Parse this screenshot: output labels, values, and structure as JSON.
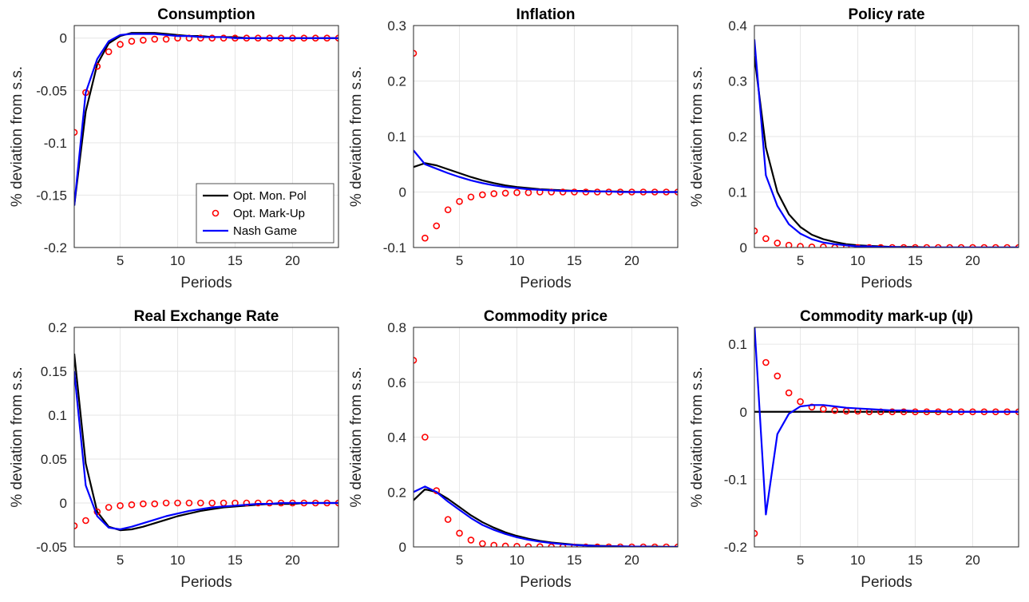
{
  "chart_data": [
    {
      "type": "line",
      "title": "Consumption",
      "xlabel": "Periods",
      "ylabel": "% deviation from s.s.",
      "x": [
        1,
        2,
        3,
        4,
        5,
        6,
        7,
        8,
        9,
        10,
        11,
        12,
        13,
        14,
        15,
        16,
        17,
        18,
        19,
        20,
        21,
        22,
        23,
        24
      ],
      "xlim": [
        1,
        24
      ],
      "xticks": [
        5,
        10,
        15,
        20
      ],
      "ylim": [
        -0.2,
        0.012
      ],
      "yticks": [
        -0.2,
        -0.15,
        -0.1,
        -0.05,
        0
      ],
      "grid": true,
      "legend": "lower right",
      "series": [
        {
          "name": "Opt. Mon. Pol",
          "color": "#000000",
          "values": [
            -0.16,
            -0.07,
            -0.025,
            -0.005,
            0.002,
            0.005,
            0.005,
            0.005,
            0.004,
            0.003,
            0.002,
            0.002,
            0.001,
            0.001,
            0.001,
            0,
            0,
            0,
            0,
            0,
            0,
            0,
            0,
            0
          ]
        },
        {
          "name": "Opt. Mark-Up",
          "color": "#ff0000",
          "marker": "circle",
          "values": [
            -0.09,
            -0.052,
            -0.027,
            -0.013,
            -0.006,
            -0.003,
            -0.002,
            -0.001,
            -0.001,
            0,
            0,
            0,
            0,
            0,
            0,
            0,
            0,
            0,
            0,
            0,
            0,
            0,
            0,
            0
          ]
        },
        {
          "name": "Nash Game",
          "color": "#0000ff",
          "values": [
            -0.16,
            -0.052,
            -0.02,
            -0.003,
            0.003,
            0.004,
            0.004,
            0.004,
            0.003,
            0.002,
            0.002,
            0.001,
            0.001,
            0.001,
            0,
            0,
            0,
            0,
            0,
            0,
            0,
            0,
            0,
            0
          ]
        }
      ]
    },
    {
      "type": "line",
      "title": "Inflation",
      "xlabel": "Periods",
      "ylabel": "% deviation from s.s.",
      "x": [
        1,
        2,
        3,
        4,
        5,
        6,
        7,
        8,
        9,
        10,
        11,
        12,
        13,
        14,
        15,
        16,
        17,
        18,
        19,
        20,
        21,
        22,
        23,
        24
      ],
      "xlim": [
        1,
        24
      ],
      "xticks": [
        5,
        10,
        15,
        20
      ],
      "ylim": [
        -0.1,
        0.3
      ],
      "yticks": [
        -0.1,
        0,
        0.1,
        0.2,
        0.3
      ],
      "grid": true,
      "series": [
        {
          "color": "#000000",
          "values": [
            0.045,
            0.052,
            0.048,
            0.041,
            0.034,
            0.027,
            0.021,
            0.016,
            0.012,
            0.009,
            0.007,
            0.005,
            0.004,
            0.003,
            0.002,
            0.002,
            0.001,
            0.001,
            0.001,
            0,
            0,
            0,
            0,
            0
          ]
        },
        {
          "color": "#ff0000",
          "marker": "circle",
          "values": [
            0.25,
            -0.083,
            -0.061,
            -0.032,
            -0.017,
            -0.009,
            -0.005,
            -0.003,
            -0.002,
            -0.001,
            -0.001,
            0,
            0,
            0,
            0,
            0,
            0,
            0,
            0,
            0,
            0,
            0,
            0,
            0
          ]
        },
        {
          "color": "#0000ff",
          "values": [
            0.075,
            0.05,
            0.042,
            0.034,
            0.027,
            0.021,
            0.016,
            0.012,
            0.009,
            0.007,
            0.005,
            0.004,
            0.003,
            0.002,
            0.002,
            0.001,
            0.001,
            0.001,
            0,
            0,
            0,
            0,
            0,
            0
          ]
        }
      ]
    },
    {
      "type": "line",
      "title": "Policy rate",
      "xlabel": "Periods",
      "ylabel": "% deviation from s.s.",
      "x": [
        1,
        2,
        3,
        4,
        5,
        6,
        7,
        8,
        9,
        10,
        11,
        12,
        13,
        14,
        15,
        16,
        17,
        18,
        19,
        20,
        21,
        22,
        23,
        24
      ],
      "xlim": [
        1,
        24
      ],
      "xticks": [
        5,
        10,
        15,
        20
      ],
      "ylim": [
        0,
        0.4
      ],
      "yticks": [
        0,
        0.1,
        0.2,
        0.3,
        0.4
      ],
      "grid": true,
      "series": [
        {
          "color": "#000000",
          "values": [
            0.345,
            0.18,
            0.1,
            0.06,
            0.037,
            0.023,
            0.015,
            0.01,
            0.006,
            0.004,
            0.003,
            0.002,
            0.001,
            0.001,
            0.001,
            0,
            0,
            0,
            0,
            0,
            0,
            0,
            0,
            0
          ]
        },
        {
          "color": "#ff0000",
          "marker": "circle",
          "values": [
            0.03,
            0.016,
            0.008,
            0.004,
            0.002,
            0.001,
            0.001,
            0,
            0,
            0,
            0,
            0,
            0,
            0,
            0,
            0,
            0,
            0,
            0,
            0,
            0,
            0,
            0,
            0
          ]
        },
        {
          "color": "#0000ff",
          "values": [
            0.375,
            0.13,
            0.075,
            0.042,
            0.025,
            0.015,
            0.009,
            0.006,
            0.004,
            0.002,
            0.002,
            0.001,
            0.001,
            0,
            0,
            0,
            0,
            0,
            0,
            0,
            0,
            0,
            0,
            0
          ]
        }
      ]
    },
    {
      "type": "line",
      "title": "Real Exchange Rate",
      "xlabel": "Periods",
      "ylabel": "% deviation from s.s.",
      "x": [
        1,
        2,
        3,
        4,
        5,
        6,
        7,
        8,
        9,
        10,
        11,
        12,
        13,
        14,
        15,
        16,
        17,
        18,
        19,
        20,
        21,
        22,
        23,
        24
      ],
      "xlim": [
        1,
        24
      ],
      "xticks": [
        5,
        10,
        15,
        20
      ],
      "ylim": [
        -0.05,
        0.2
      ],
      "yticks": [
        -0.05,
        0,
        0.05,
        0.1,
        0.15,
        0.2
      ],
      "grid": true,
      "series": [
        {
          "color": "#000000",
          "values": [
            0.17,
            0.045,
            -0.01,
            -0.027,
            -0.031,
            -0.03,
            -0.027,
            -0.023,
            -0.019,
            -0.015,
            -0.012,
            -0.009,
            -0.007,
            -0.005,
            -0.004,
            -0.003,
            -0.002,
            -0.001,
            -0.001,
            -0.001,
            0,
            0,
            0,
            0
          ]
        },
        {
          "color": "#ff0000",
          "marker": "circle",
          "values": [
            -0.026,
            -0.02,
            -0.01,
            -0.005,
            -0.003,
            -0.002,
            -0.001,
            -0.001,
            0,
            0,
            0,
            0,
            0,
            0,
            0,
            0,
            0,
            0,
            0,
            0,
            0,
            0,
            0,
            0
          ]
        },
        {
          "color": "#0000ff",
          "values": [
            0.15,
            0.02,
            -0.015,
            -0.028,
            -0.03,
            -0.027,
            -0.023,
            -0.019,
            -0.015,
            -0.012,
            -0.009,
            -0.007,
            -0.005,
            -0.004,
            -0.003,
            -0.002,
            -0.001,
            -0.001,
            0,
            0,
            0,
            0,
            0,
            0
          ]
        }
      ]
    },
    {
      "type": "line",
      "title": "Commodity price",
      "xlabel": "Periods",
      "ylabel": "% deviation from s.s.",
      "x": [
        1,
        2,
        3,
        4,
        5,
        6,
        7,
        8,
        9,
        10,
        11,
        12,
        13,
        14,
        15,
        16,
        17,
        18,
        19,
        20,
        21,
        22,
        23,
        24
      ],
      "xlim": [
        1,
        24
      ],
      "xticks": [
        5,
        10,
        15,
        20
      ],
      "ylim": [
        0,
        0.8
      ],
      "yticks": [
        0,
        0.2,
        0.4,
        0.6,
        0.8
      ],
      "grid": true,
      "series": [
        {
          "color": "#000000",
          "values": [
            0.17,
            0.21,
            0.2,
            0.175,
            0.145,
            0.115,
            0.09,
            0.07,
            0.053,
            0.04,
            0.03,
            0.022,
            0.016,
            0.012,
            0.008,
            0.006,
            0.004,
            0.003,
            0.002,
            0.001,
            0.001,
            0.001,
            0,
            0
          ]
        },
        {
          "color": "#ff0000",
          "marker": "circle",
          "values": [
            0.68,
            0.4,
            0.205,
            0.1,
            0.05,
            0.025,
            0.012,
            0.006,
            0.003,
            0.002,
            0.001,
            0.001,
            0,
            0,
            0,
            0,
            0,
            0,
            0,
            0,
            0,
            0,
            0,
            0
          ]
        },
        {
          "color": "#0000ff",
          "values": [
            0.2,
            0.22,
            0.2,
            0.165,
            0.135,
            0.105,
            0.08,
            0.062,
            0.047,
            0.035,
            0.026,
            0.019,
            0.014,
            0.01,
            0.007,
            0.005,
            0.003,
            0.002,
            0.002,
            0.001,
            0.001,
            0,
            0,
            0
          ]
        }
      ]
    },
    {
      "type": "line",
      "title": "Commodity mark-up (ψ)",
      "xlabel": "Periods",
      "ylabel": "% deviation from s.s.",
      "x": [
        1,
        2,
        3,
        4,
        5,
        6,
        7,
        8,
        9,
        10,
        11,
        12,
        13,
        14,
        15,
        16,
        17,
        18,
        19,
        20,
        21,
        22,
        23,
        24
      ],
      "xlim": [
        1,
        24
      ],
      "xticks": [
        5,
        10,
        15,
        20
      ],
      "ylim": [
        -0.2,
        0.125
      ],
      "yticks": [
        -0.2,
        -0.1,
        0,
        0.1
      ],
      "grid": true,
      "series": [
        {
          "color": "#000000",
          "values": [
            0,
            0,
            0,
            0,
            0,
            0,
            0,
            0,
            0,
            0,
            0,
            0,
            0,
            0,
            0,
            0,
            0,
            0,
            0,
            0,
            0,
            0,
            0,
            0
          ]
        },
        {
          "color": "#ff0000",
          "marker": "circle",
          "values": [
            -0.18,
            0.073,
            0.053,
            0.028,
            0.015,
            0.007,
            0.004,
            0.002,
            0.001,
            0.001,
            0,
            0,
            0,
            0,
            0,
            0,
            0,
            0,
            0,
            0,
            0,
            0,
            0,
            0
          ]
        },
        {
          "color": "#0000ff",
          "values": [
            0.13,
            -0.152,
            -0.033,
            -0.003,
            0.008,
            0.01,
            0.01,
            0.008,
            0.006,
            0.005,
            0.004,
            0.003,
            0.002,
            0.002,
            0.001,
            0.001,
            0.001,
            0,
            0,
            0,
            0,
            0,
            0,
            0
          ]
        }
      ]
    }
  ]
}
